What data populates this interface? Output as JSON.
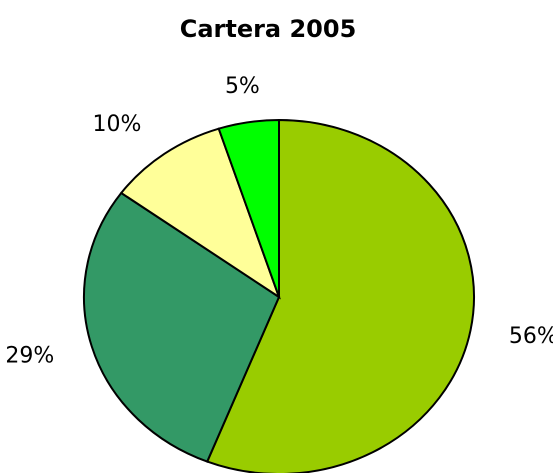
{
  "chart_data": {
    "type": "pie",
    "title": "Cartera 2005",
    "values": [
      56,
      29,
      10,
      5
    ],
    "value_labels": [
      "56%",
      "29%",
      "10%",
      "5%"
    ],
    "colors": [
      "#99cc00",
      "#339966",
      "#ffff99",
      "#00ff00"
    ]
  }
}
